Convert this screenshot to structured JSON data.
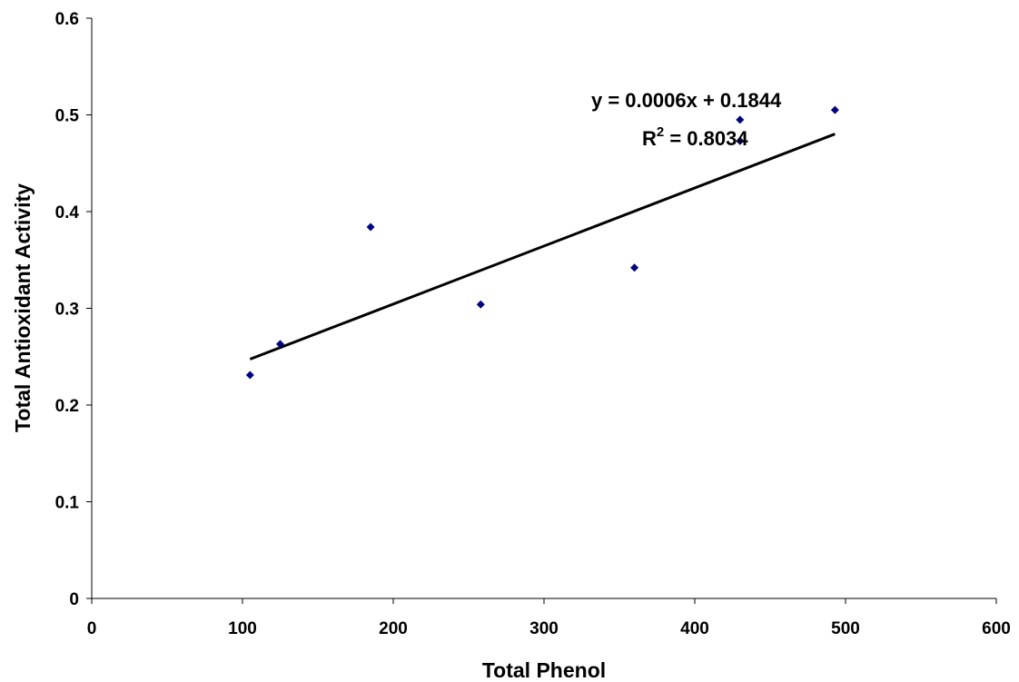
{
  "chart_data": {
    "type": "scatter",
    "title": "",
    "xlabel": "Total Phenol",
    "ylabel": "Total Antioxidant Activity",
    "xlim": [
      0,
      600
    ],
    "ylim": [
      0,
      0.6
    ],
    "x_ticks": [
      0,
      100,
      200,
      300,
      400,
      500,
      600
    ],
    "x_tick_labels": [
      "0",
      "100",
      "200",
      "300",
      "400",
      "500",
      "600"
    ],
    "y_ticks": [
      0,
      0.1,
      0.2,
      0.3,
      0.4,
      0.5,
      0.6
    ],
    "y_tick_labels": [
      "0",
      "0.1",
      "0.2",
      "0.3",
      "0.4",
      "0.5",
      "0.6"
    ],
    "grid": false,
    "legend": "none",
    "series": [
      {
        "marker": "diamond",
        "color": "#000080",
        "points": [
          {
            "x": 105,
            "y": 0.231
          },
          {
            "x": 125,
            "y": 0.263
          },
          {
            "x": 185,
            "y": 0.384
          },
          {
            "x": 258,
            "y": 0.304
          },
          {
            "x": 360,
            "y": 0.342
          },
          {
            "x": 430,
            "y": 0.495
          },
          {
            "x": 430,
            "y": 0.473
          },
          {
            "x": 493,
            "y": 0.505
          }
        ]
      }
    ],
    "trendline": {
      "type": "linear",
      "slope": 0.0006,
      "intercept": 0.1844,
      "x_range": [
        105,
        493
      ],
      "color": "#000000"
    },
    "annotations": {
      "equation": "y = 0.0006x + 0.1844",
      "r2_prefix": "R",
      "r2_sup": "2",
      "r2_suffix": " = 0.8034"
    }
  }
}
